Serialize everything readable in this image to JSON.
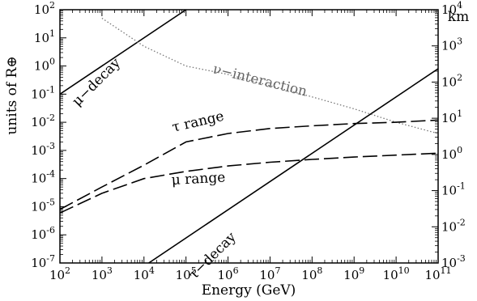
{
  "chart_data": {
    "type": "line",
    "xlabel": "Energy (GeV)",
    "ylabel": "units of R⊕",
    "y2label": "km",
    "x_scale": "log",
    "y_scale": "log",
    "xlim": [
      100.0,
      100000000000.0
    ],
    "ylim": [
      1e-07,
      100.0
    ],
    "y2lim": [
      0.001,
      10000.0
    ],
    "x_ticks": [
      "10^2",
      "10^3",
      "10^4",
      "10^5",
      "10^6",
      "10^7",
      "10^8",
      "10^9",
      "10^10",
      "10^11"
    ],
    "y_ticks": [
      "10^-7",
      "10^-6",
      "10^-5",
      "10^-4",
      "10^-3",
      "10^-2",
      "10^-1",
      "10^0",
      "10^1",
      "10^2"
    ],
    "y2_ticks": [
      "10^-3",
      "10^-2",
      "10^-1",
      "10^0",
      "10^1",
      "10^2",
      "10^3",
      "10^4"
    ],
    "grid": false,
    "series": [
      {
        "name": "μ−decay",
        "style": "solid",
        "color": "#000000",
        "x": [
          100.0,
          100000.0
        ],
        "y": [
          0.1,
          100
        ]
      },
      {
        "name": "τ−decay",
        "style": "solid",
        "color": "#000000",
        "x": [
          13000.0,
          100000000000.0
        ],
        "y": [
          1e-07,
          0.8
        ]
      },
      {
        "name": "ν−interaction",
        "style": "dotted",
        "color": "#777777",
        "x": [
          1000.0,
          10000.0,
          100000.0,
          1000000.0,
          10000000.0,
          100000000.0,
          1000000000.0,
          10000000000.0,
          100000000000.0
        ],
        "y": [
          50,
          5,
          1,
          0.5,
          0.2,
          0.08,
          0.03,
          0.01,
          0.004
        ]
      },
      {
        "name": "τ range",
        "style": "dashed",
        "color": "#000000",
        "x": [
          100.0,
          1000.0,
          10000.0,
          100000.0,
          1000000.0,
          10000000.0,
          100000000.0,
          1000000000.0,
          10000000000.0,
          100000000000.0
        ],
        "y": [
          8e-06,
          5e-05,
          0.0003,
          0.002,
          0.004,
          0.006,
          0.0075,
          0.009,
          0.01,
          0.012
        ]
      },
      {
        "name": "μ range",
        "style": "dashed",
        "color": "#000000",
        "x": [
          100.0,
          1000.0,
          10000.0,
          100000.0,
          1000000.0,
          10000000.0,
          100000000.0,
          1000000000.0,
          10000000000.0,
          100000000000.0
        ],
        "y": [
          6e-06,
          3e-05,
          0.0001,
          0.00018,
          0.00028,
          0.00038,
          0.00048,
          0.00058,
          0.00068,
          0.0008
        ]
      }
    ]
  }
}
